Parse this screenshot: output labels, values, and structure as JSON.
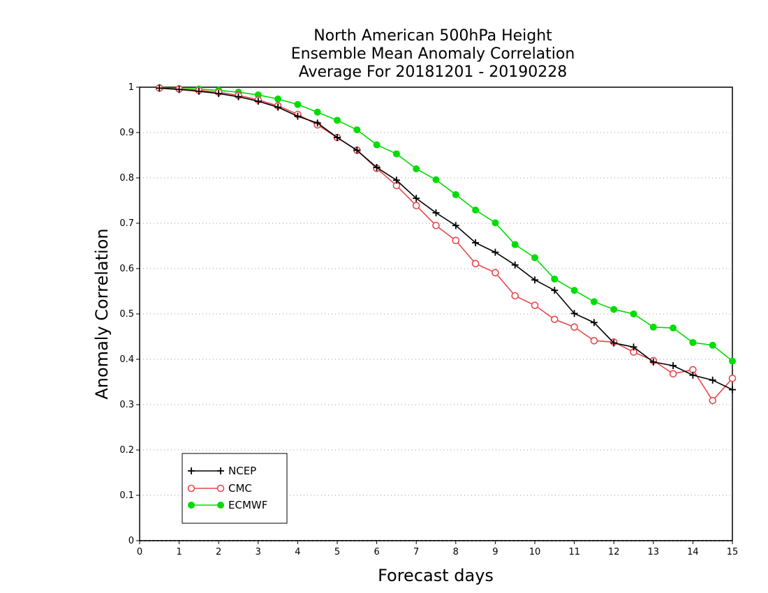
{
  "chart_data": {
    "type": "line",
    "title_lines": [
      "North American 500hPa Height",
      "Ensemble Mean Anomaly Correlation",
      "Average For 20181201 - 20190228"
    ],
    "xlabel": "Forecast days",
    "ylabel": "Anomaly Correlation",
    "xlim": [
      0,
      15
    ],
    "ylim": [
      0,
      1
    ],
    "x_ticks": [
      "0",
      "1",
      "2",
      "3",
      "4",
      "5",
      "6",
      "7",
      "8",
      "9",
      "10",
      "11",
      "12",
      "13",
      "14",
      "15"
    ],
    "y_ticks": [
      "0",
      "0.1",
      "0.2",
      "0.3",
      "0.4",
      "0.5",
      "0.6",
      "0.7",
      "0.8",
      "0.9",
      "1"
    ],
    "grid": "horizontal-dotted",
    "legend_position": "bottom-left",
    "x": [
      0.5,
      1.0,
      1.5,
      2.0,
      2.5,
      3.0,
      3.5,
      4.0,
      4.5,
      5.0,
      5.5,
      6.0,
      6.5,
      7.0,
      7.5,
      8.0,
      8.5,
      9.0,
      9.5,
      10.0,
      10.5,
      11.0,
      11.5,
      12.0,
      12.5,
      13.0,
      13.5,
      14.0,
      14.5,
      15.0
    ],
    "series": [
      {
        "name": "NCEP",
        "color": "#000000",
        "marker": "plus",
        "values": [
          0.998,
          0.995,
          0.991,
          0.986,
          0.979,
          0.969,
          0.956,
          0.936,
          0.921,
          0.889,
          0.861,
          0.823,
          0.795,
          0.755,
          0.723,
          0.695,
          0.657,
          0.636,
          0.608,
          0.575,
          0.552,
          0.501,
          0.481,
          0.436,
          0.427,
          0.394,
          0.386,
          0.365,
          0.354,
          0.333
        ]
      },
      {
        "name": "CMC",
        "color": "#e8474b",
        "marker": "open-circle",
        "values": [
          0.998,
          0.996,
          0.993,
          0.989,
          0.982,
          0.972,
          0.959,
          0.94,
          0.917,
          0.889,
          0.861,
          0.821,
          0.783,
          0.739,
          0.695,
          0.662,
          0.611,
          0.591,
          0.54,
          0.519,
          0.488,
          0.471,
          0.441,
          0.438,
          0.416,
          0.397,
          0.368,
          0.377,
          0.309,
          0.358
        ]
      },
      {
        "name": "ECMWF",
        "color": "#00dd00",
        "marker": "filled-circle",
        "values": [
          0.999,
          0.997,
          0.996,
          0.993,
          0.989,
          0.983,
          0.974,
          0.962,
          0.945,
          0.927,
          0.906,
          0.873,
          0.853,
          0.82,
          0.796,
          0.763,
          0.729,
          0.701,
          0.653,
          0.624,
          0.577,
          0.552,
          0.527,
          0.51,
          0.5,
          0.471,
          0.469,
          0.437,
          0.431,
          0.396
        ]
      }
    ]
  }
}
